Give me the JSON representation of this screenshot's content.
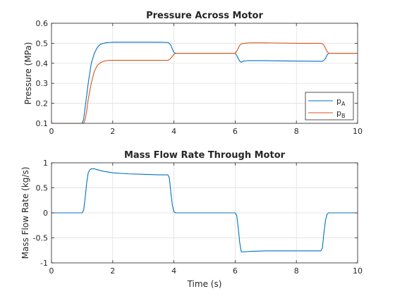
{
  "figure": {
    "background": "#ffffff",
    "axes_color": "#262626",
    "grid_color": "#dcdcdc"
  },
  "chart_data": [
    {
      "type": "line",
      "title": "Pressure Across Motor",
      "xlabel": "",
      "ylabel": "Pressure (MPa)",
      "xlim": [
        0,
        10
      ],
      "ylim": [
        0.1,
        0.6
      ],
      "xticks": [
        0,
        2,
        4,
        6,
        8,
        10
      ],
      "yticks": [
        0.1,
        0.2,
        0.3,
        0.4,
        0.5,
        0.6
      ],
      "xtick_labels": [
        "0",
        "2",
        "4",
        "6",
        "8",
        "10"
      ],
      "ytick_labels": [
        "0.1",
        "0.2",
        "0.3",
        "0.4",
        "0.5",
        "0.6"
      ],
      "grid": true,
      "legend": "bottom-right",
      "series": [
        {
          "name": "p",
          "subscript": "A",
          "color": "#0072bd",
          "x": [
            0,
            1.0,
            1.05,
            1.1,
            1.2,
            1.3,
            1.4,
            1.5,
            1.6,
            1.7,
            1.8,
            1.9,
            2.0,
            2.2,
            2.5,
            3.0,
            3.5,
            3.8,
            3.85,
            3.9,
            3.95,
            4.0,
            4.05,
            4.1,
            4.5,
            5.0,
            5.5,
            6.0,
            6.05,
            6.1,
            6.15,
            6.2,
            6.25,
            6.4,
            7.0,
            8.0,
            8.8,
            8.85,
            8.9,
            8.95,
            9.0,
            9.05,
            9.1,
            9.5,
            10.0
          ],
          "y": [
            0.1,
            0.1,
            0.12,
            0.18,
            0.3,
            0.4,
            0.45,
            0.48,
            0.495,
            0.5,
            0.503,
            0.504,
            0.505,
            0.505,
            0.505,
            0.505,
            0.505,
            0.504,
            0.5,
            0.49,
            0.47,
            0.455,
            0.45,
            0.45,
            0.45,
            0.45,
            0.45,
            0.45,
            0.44,
            0.425,
            0.41,
            0.405,
            0.41,
            0.413,
            0.413,
            0.411,
            0.41,
            0.41,
            0.415,
            0.425,
            0.44,
            0.45,
            0.45,
            0.45,
            0.45
          ]
        },
        {
          "name": "p",
          "subscript": "B",
          "color": "#d95319",
          "x": [
            0,
            1.05,
            1.1,
            1.15,
            1.2,
            1.3,
            1.4,
            1.5,
            1.6,
            1.7,
            1.8,
            1.9,
            2.0,
            2.5,
            3.0,
            3.5,
            3.8,
            3.85,
            3.9,
            3.95,
            4.0,
            4.05,
            4.1,
            4.5,
            5.0,
            5.5,
            6.0,
            6.05,
            6.1,
            6.15,
            6.2,
            6.3,
            6.5,
            7.0,
            8.0,
            8.8,
            8.85,
            8.9,
            8.95,
            9.0,
            9.05,
            9.1,
            9.5,
            10.0
          ],
          "y": [
            0.1,
            0.1,
            0.12,
            0.16,
            0.22,
            0.3,
            0.36,
            0.39,
            0.403,
            0.41,
            0.413,
            0.415,
            0.415,
            0.415,
            0.415,
            0.415,
            0.415,
            0.418,
            0.425,
            0.435,
            0.445,
            0.45,
            0.45,
            0.45,
            0.45,
            0.45,
            0.45,
            0.46,
            0.475,
            0.49,
            0.497,
            0.5,
            0.502,
            0.502,
            0.5,
            0.5,
            0.498,
            0.49,
            0.475,
            0.46,
            0.45,
            0.45,
            0.45,
            0.45
          ]
        }
      ]
    },
    {
      "type": "line",
      "title": "Mass Flow Rate Through Motor",
      "xlabel": "Time (s)",
      "ylabel": "Mass Flow Rate (kg/s)",
      "xlim": [
        0,
        10
      ],
      "ylim": [
        -1,
        1
      ],
      "xticks": [
        0,
        2,
        4,
        6,
        8,
        10
      ],
      "yticks": [
        -1,
        -0.5,
        0,
        0.5,
        1
      ],
      "xtick_labels": [
        "0",
        "2",
        "4",
        "6",
        "8",
        "10"
      ],
      "ytick_labels": [
        "-1",
        "-0.5",
        "0",
        "0.5",
        "1"
      ],
      "grid": true,
      "series": [
        {
          "name": "",
          "color": "#0072bd",
          "x": [
            0,
            1.0,
            1.05,
            1.1,
            1.15,
            1.2,
            1.25,
            1.3,
            1.4,
            1.5,
            1.7,
            2.0,
            2.5,
            3.0,
            3.5,
            3.8,
            3.85,
            3.9,
            3.95,
            4.0,
            4.05,
            4.2,
            5.0,
            6.0,
            6.05,
            6.1,
            6.15,
            6.2,
            6.3,
            6.5,
            7.0,
            8.0,
            8.8,
            8.85,
            8.9,
            8.95,
            9.0,
            9.05,
            9.2,
            10.0
          ],
          "y": [
            0,
            0,
            0.05,
            0.3,
            0.6,
            0.8,
            0.86,
            0.88,
            0.88,
            0.86,
            0.83,
            0.8,
            0.78,
            0.77,
            0.76,
            0.76,
            0.7,
            0.4,
            0.15,
            0.02,
            0,
            0,
            0,
            0,
            -0.05,
            -0.3,
            -0.6,
            -0.78,
            -0.78,
            -0.77,
            -0.76,
            -0.76,
            -0.76,
            -0.7,
            -0.4,
            -0.15,
            -0.03,
            0,
            0,
            0
          ]
        }
      ]
    }
  ]
}
